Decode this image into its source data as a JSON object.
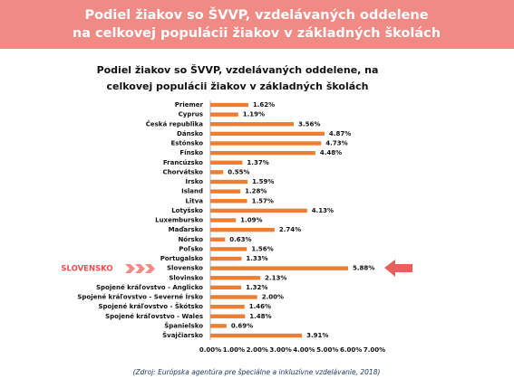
{
  "header": {
    "title_lines": [
      "Podiel žiakov so ŠVVP, vzdelávaných oddelene",
      "na celkovej populácii žiakov v základných školách"
    ]
  },
  "chart_data": {
    "type": "hbar",
    "title": [
      "Podiel žiakov so ŠVVP, vzdelávaných oddelene, na",
      "celkovej populácii žiakov v základných školách"
    ],
    "categories": [
      "Priemer",
      "Cyprus",
      "Česká republika",
      "Dánsko",
      "Estónsko",
      "Fínsko",
      "Francúzsko",
      "Chorvátsko",
      "Írsko",
      "Island",
      "Litva",
      "Lotyšsko",
      "Luxembursko",
      "Maďarsko",
      "Nórsko",
      "Poľsko",
      "Portugalsko",
      "Slovensko",
      "Slovinsko",
      "Spojené kráľovstvo - Anglicko",
      "Spojené kráľovstvo - Severné Írsko",
      "Spojené kráľovstvo - Škótsko",
      "Spojené kráľovstvo - Wales",
      "Španielsko",
      "Švajčiarsko"
    ],
    "values": [
      1.62,
      1.19,
      3.56,
      4.87,
      4.73,
      4.48,
      1.37,
      0.55,
      1.59,
      1.28,
      1.57,
      4.13,
      1.09,
      2.74,
      0.63,
      1.56,
      1.33,
      5.88,
      2.13,
      1.32,
      2.0,
      1.46,
      1.48,
      0.69,
      3.91
    ],
    "value_labels": [
      "1.62%",
      "1.19%",
      "3.56%",
      "4.87%",
      "4.73%",
      "4.48%",
      "1.37%",
      "0.55%",
      "1.59%",
      "1.28%",
      "1.57%",
      "4.13%",
      "1.09%",
      "2.74%",
      "0.63%",
      "1.56%",
      "1.33%",
      "5.88%",
      "2.13%",
      "1.32%",
      "2.00%",
      "1.46%",
      "1.48%",
      "0.69%",
      "3.91%"
    ],
    "color": "#ed7d31",
    "xlim": [
      0,
      7
    ],
    "xticks": [
      {
        "value": 0,
        "label": "0.00%"
      },
      {
        "value": 1,
        "label": "1.00%"
      },
      {
        "value": 2,
        "label": "2.00%"
      },
      {
        "value": 3,
        "label": "3.00%"
      },
      {
        "value": 4,
        "label": "4.00%"
      },
      {
        "value": 5,
        "label": "5.00%"
      },
      {
        "value": 6,
        "label": "6.00%"
      },
      {
        "value": 7,
        "label": "7.00%"
      }
    ],
    "grid": false,
    "highlight_label": "SLOVENSKO"
  },
  "source": "(Zdroj: Európska agentúra pre špeciálne a inkluzívne vzdelávanie, 2018)"
}
